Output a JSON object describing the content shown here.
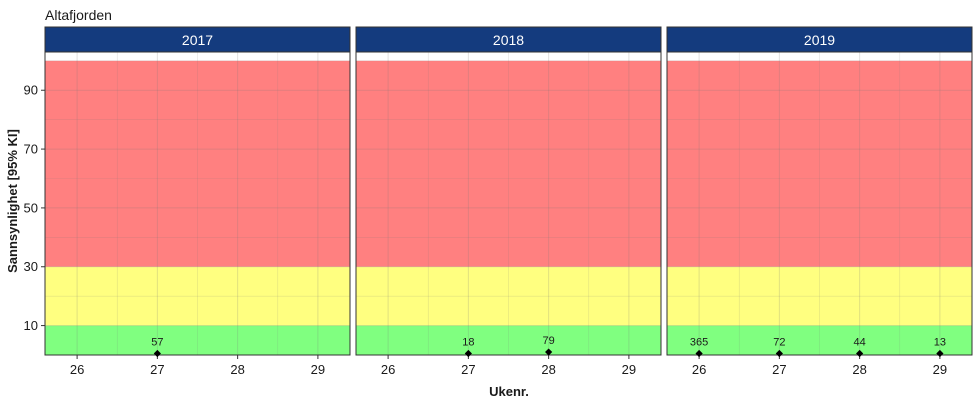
{
  "chart_data": {
    "type": "scatter",
    "title": "Altafjorden",
    "xlabel": "Ukenr.",
    "ylabel": "Sannsynlighet [95% KI]",
    "xlim": [
      25.6,
      29.4
    ],
    "ylim": [
      0,
      103
    ],
    "x_ticks": [
      26,
      27,
      28,
      29
    ],
    "y_ticks": [
      10,
      30,
      50,
      70,
      90
    ],
    "grid": true,
    "legend": "none",
    "bands": [
      {
        "from": 0,
        "to": 10,
        "color": "#80ff80"
      },
      {
        "from": 10,
        "to": 30,
        "color": "#ffff80"
      },
      {
        "from": 30,
        "to": 100,
        "color": "#ff8080"
      }
    ],
    "colors": {
      "strip": "#143b7e",
      "point": "#000000"
    },
    "facets": [
      {
        "label": "2017",
        "points": [
          {
            "x": 27,
            "y": 0.5,
            "label": "57"
          }
        ]
      },
      {
        "label": "2018",
        "points": [
          {
            "x": 27,
            "y": 0.5,
            "label": "18"
          },
          {
            "x": 28,
            "y": 1.0,
            "label": "79"
          }
        ]
      },
      {
        "label": "2019",
        "points": [
          {
            "x": 26,
            "y": 0.5,
            "label": "365"
          },
          {
            "x": 27,
            "y": 0.5,
            "label": "72"
          },
          {
            "x": 28,
            "y": 0.5,
            "label": "44"
          },
          {
            "x": 29,
            "y": 0.5,
            "label": "13"
          }
        ]
      }
    ]
  }
}
